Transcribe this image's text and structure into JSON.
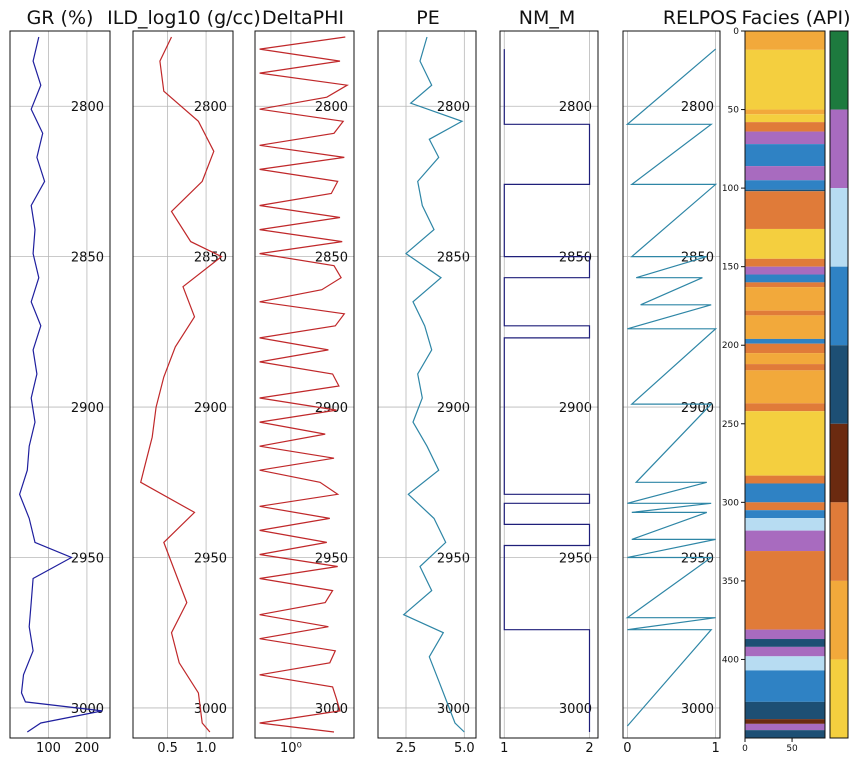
{
  "chart_data": [
    {
      "type": "line",
      "title": "GR (%)",
      "color": "#1f1f9e",
      "xlim": [
        0,
        260
      ],
      "xticks": [
        100,
        200
      ],
      "ylim": [
        3010,
        2775
      ],
      "yticks": [
        2800,
        2850,
        2900,
        2950,
        3000
      ],
      "grid": true,
      "depth": [
        2777,
        2785,
        2793,
        2801,
        2809,
        2817,
        2825,
        2833,
        2841,
        2849,
        2857,
        2865,
        2873,
        2881,
        2889,
        2897,
        2905,
        2913,
        2921,
        2929,
        2937,
        2945,
        2950,
        2957,
        2965,
        2973,
        2981,
        2989,
        2995,
        2998,
        3001,
        3005,
        3008
      ],
      "values": [
        75,
        60,
        80,
        55,
        85,
        70,
        90,
        55,
        65,
        60,
        75,
        55,
        80,
        60,
        70,
        55,
        65,
        50,
        45,
        25,
        50,
        65,
        160,
        60,
        55,
        50,
        60,
        35,
        30,
        40,
        240,
        80,
        45
      ]
    },
    {
      "type": "line",
      "title": "ILD_log10 (g/cc)",
      "color": "#c0282a",
      "xlim": [
        0.05,
        1.35
      ],
      "xticks": [
        0.5,
        1.0
      ],
      "xtick_labels": [
        "0.5",
        "1.0"
      ],
      "ylim": [
        3010,
        2775
      ],
      "yticks": [
        2800,
        2850,
        2900,
        2950,
        3000
      ],
      "grid": true,
      "depth": [
        2777,
        2785,
        2795,
        2805,
        2815,
        2825,
        2835,
        2845,
        2850,
        2860,
        2870,
        2880,
        2890,
        2900,
        2910,
        2920,
        2925,
        2935,
        2945,
        2955,
        2965,
        2975,
        2985,
        2995,
        3005,
        3008
      ],
      "values": [
        0.55,
        0.4,
        0.45,
        0.9,
        1.1,
        0.95,
        0.55,
        0.8,
        1.2,
        0.7,
        0.85,
        0.6,
        0.45,
        0.35,
        0.3,
        0.2,
        0.15,
        0.85,
        0.45,
        0.6,
        0.75,
        0.55,
        0.65,
        0.9,
        0.95,
        1.05
      ]
    },
    {
      "type": "line",
      "title": "DeltaPHI",
      "color": "#c0282a",
      "xlim": [
        0.4,
        5.0
      ],
      "xscale": "log",
      "xticks": [
        1
      ],
      "xtick_labels": [
        "10⁰"
      ],
      "ylim": [
        3010,
        2775
      ],
      "yticks": [
        2800,
        2850,
        2900,
        2950,
        3000
      ],
      "grid": true,
      "depth": [
        2777,
        2781,
        2785,
        2789,
        2793,
        2797,
        2801,
        2805,
        2809,
        2813,
        2817,
        2821,
        2825,
        2829,
        2833,
        2837,
        2841,
        2845,
        2849,
        2853,
        2857,
        2861,
        2865,
        2869,
        2873,
        2877,
        2881,
        2885,
        2889,
        2893,
        2897,
        2901,
        2905,
        2909,
        2913,
        2917,
        2921,
        2925,
        2929,
        2933,
        2937,
        2941,
        2945,
        2949,
        2953,
        2957,
        2961,
        2965,
        2969,
        2973,
        2977,
        2981,
        2985,
        2989,
        2993,
        2997,
        3001,
        3005,
        3008
      ],
      "values": [
        4.0,
        0.45,
        3.5,
        0.45,
        4.2,
        2.5,
        0.45,
        3.8,
        3.0,
        0.45,
        3.9,
        0.45,
        3.3,
        2.8,
        0.45,
        3.5,
        0.45,
        3.7,
        0.45,
        3.0,
        3.6,
        2.2,
        0.45,
        3.9,
        3.1,
        0.45,
        2.6,
        0.45,
        2.9,
        3.4,
        0.45,
        3.2,
        0.45,
        2.4,
        0.45,
        3.0,
        0.45,
        2.1,
        3.3,
        0.45,
        2.7,
        0.45,
        2.5,
        0.45,
        3.3,
        0.45,
        2.9,
        2.4,
        0.45,
        2.6,
        0.45,
        3.1,
        2.7,
        0.45,
        2.9,
        3.2,
        3.5,
        0.45,
        3.0
      ]
    },
    {
      "type": "line",
      "title": "PE",
      "color": "#2e86a6",
      "xlim": [
        1.3,
        5.5
      ],
      "xticks": [
        2.5,
        5.0
      ],
      "xtick_labels": [
        "2.5",
        "5.0"
      ],
      "ylim": [
        3010,
        2775
      ],
      "yticks": [
        2800,
        2850,
        2900,
        2950,
        3000
      ],
      "grid": true,
      "depth": [
        2777,
        2785,
        2793,
        2799,
        2805,
        2811,
        2817,
        2825,
        2833,
        2841,
        2849,
        2857,
        2865,
        2873,
        2881,
        2889,
        2897,
        2905,
        2913,
        2921,
        2929,
        2937,
        2945,
        2953,
        2961,
        2969,
        2975,
        2983,
        2991,
        2999,
        3005,
        3008
      ],
      "values": [
        3.4,
        3.1,
        3.6,
        2.7,
        4.9,
        3.5,
        3.9,
        3.0,
        3.2,
        3.7,
        2.5,
        4.0,
        2.8,
        3.3,
        3.6,
        3.0,
        3.2,
        2.8,
        3.4,
        3.9,
        2.6,
        3.7,
        4.2,
        3.1,
        3.6,
        2.4,
        4.1,
        3.5,
        3.9,
        4.3,
        4.6,
        5.0
      ]
    },
    {
      "type": "line",
      "title": "NM_M",
      "color": "#1f1f7a",
      "xlim": [
        0.95,
        2.1
      ],
      "xticks": [
        1,
        2
      ],
      "ylim": [
        3010,
        2775
      ],
      "yticks": [
        2800,
        2850,
        2900,
        2950,
        3000
      ],
      "grid": true,
      "depth": [
        2781,
        2806,
        2806,
        2826,
        2826,
        2850,
        2850,
        2857,
        2857,
        2873,
        2873,
        2877,
        2877,
        2929,
        2929,
        2932,
        2932,
        2939,
        2939,
        2946,
        2946,
        2974,
        2974,
        3008
      ],
      "values": [
        1,
        1,
        2,
        2,
        1,
        1,
        2,
        2,
        1,
        1,
        2,
        2,
        1,
        1,
        2,
        2,
        1,
        1,
        2,
        2,
        1,
        1,
        2,
        2
      ]
    },
    {
      "type": "line",
      "title": "RELPOS",
      "color": "#2e86a6",
      "xlim": [
        -0.05,
        1.05
      ],
      "xticks": [
        0,
        1
      ],
      "ylim": [
        3010,
        2775
      ],
      "yticks": [
        2800,
        2850,
        2900,
        2950,
        3000
      ],
      "grid": true,
      "depth": [
        2781,
        2806,
        2806,
        2826,
        2826,
        2850,
        2850,
        2857,
        2857,
        2866,
        2866,
        2874,
        2874,
        2899,
        2899,
        2925,
        2925,
        2932,
        2932,
        2935,
        2935,
        2944,
        2944,
        2950,
        2950,
        2970,
        2970,
        2974,
        2974,
        3006
      ],
      "values": [
        1.0,
        0.0,
        0.95,
        0.05,
        1.0,
        0.05,
        0.9,
        0.1,
        0.85,
        0.15,
        0.95,
        0.0,
        1.0,
        0.05,
        0.95,
        0.1,
        0.9,
        0.0,
        0.95,
        0.05,
        0.9,
        0.05,
        1.0,
        0.0,
        0.95,
        0.0,
        1.0,
        0.0,
        0.95,
        0.0
      ]
    },
    {
      "type": "heatmap",
      "title": "Facies (API)",
      "ylim": [
        450,
        0
      ],
      "yticks": [
        0,
        50,
        100,
        150,
        200,
        250,
        300,
        350,
        400
      ],
      "xticks": [
        0,
        50
      ],
      "xlim": [
        0,
        85
      ],
      "bands": [
        {
          "from": 0,
          "to": 12,
          "color": "#f2a93b"
        },
        {
          "from": 12,
          "to": 50,
          "color": "#f4cf3f"
        },
        {
          "from": 50,
          "to": 53,
          "color": "#f2a93b"
        },
        {
          "from": 53,
          "to": 58,
          "color": "#f4cf3f"
        },
        {
          "from": 58,
          "to": 64,
          "color": "#e07b39"
        },
        {
          "from": 64,
          "to": 72,
          "color": "#a86bbf"
        },
        {
          "from": 72,
          "to": 86,
          "color": "#2f82c4"
        },
        {
          "from": 86,
          "to": 95,
          "color": "#a86bbf"
        },
        {
          "from": 95,
          "to": 101,
          "color": "#2f82c4"
        },
        {
          "from": 101,
          "to": 102,
          "color": "#1d4f74"
        },
        {
          "from": 102,
          "to": 126,
          "color": "#e07b39"
        },
        {
          "from": 126,
          "to": 145,
          "color": "#f4cf3f"
        },
        {
          "from": 145,
          "to": 150,
          "color": "#e07b39"
        },
        {
          "from": 150,
          "to": 155,
          "color": "#a86bbf"
        },
        {
          "from": 155,
          "to": 160,
          "color": "#2f82c4"
        },
        {
          "from": 160,
          "to": 163,
          "color": "#e07b39"
        },
        {
          "from": 163,
          "to": 178,
          "color": "#f2a93b"
        },
        {
          "from": 178,
          "to": 181,
          "color": "#e07b39"
        },
        {
          "from": 181,
          "to": 196,
          "color": "#f2a93b"
        },
        {
          "from": 196,
          "to": 199,
          "color": "#2f82c4"
        },
        {
          "from": 199,
          "to": 205,
          "color": "#e07b39"
        },
        {
          "from": 205,
          "to": 212,
          "color": "#f2a93b"
        },
        {
          "from": 212,
          "to": 216,
          "color": "#e07b39"
        },
        {
          "from": 216,
          "to": 237,
          "color": "#f2a93b"
        },
        {
          "from": 237,
          "to": 242,
          "color": "#e07b39"
        },
        {
          "from": 242,
          "to": 283,
          "color": "#f4cf3f"
        },
        {
          "from": 283,
          "to": 288,
          "color": "#e07b39"
        },
        {
          "from": 288,
          "to": 300,
          "color": "#2f82c4"
        },
        {
          "from": 300,
          "to": 305,
          "color": "#e07b39"
        },
        {
          "from": 305,
          "to": 310,
          "color": "#2f82c4"
        },
        {
          "from": 310,
          "to": 318,
          "color": "#b7dcf2"
        },
        {
          "from": 318,
          "to": 331,
          "color": "#a86bbf"
        },
        {
          "from": 331,
          "to": 381,
          "color": "#e07b39"
        },
        {
          "from": 381,
          "to": 387,
          "color": "#a86bbf"
        },
        {
          "from": 387,
          "to": 392,
          "color": "#1d4f74"
        },
        {
          "from": 392,
          "to": 398,
          "color": "#a86bbf"
        },
        {
          "from": 398,
          "to": 407,
          "color": "#b7dcf2"
        },
        {
          "from": 407,
          "to": 427,
          "color": "#2f82c4"
        },
        {
          "from": 427,
          "to": 438,
          "color": "#1d4f74"
        },
        {
          "from": 438,
          "to": 441,
          "color": "#6b2a10"
        },
        {
          "from": 441,
          "to": 445,
          "color": "#a86bbf"
        },
        {
          "from": 445,
          "to": 450,
          "color": "#1d4f74"
        }
      ],
      "legend_colors": [
        "#1d7a3e",
        "#a86bbf",
        "#b7dcf2",
        "#2f82c4",
        "#1d4f74",
        "#6b2a10",
        "#e07b39",
        "#f2a93b",
        "#f4cf3f"
      ]
    }
  ]
}
